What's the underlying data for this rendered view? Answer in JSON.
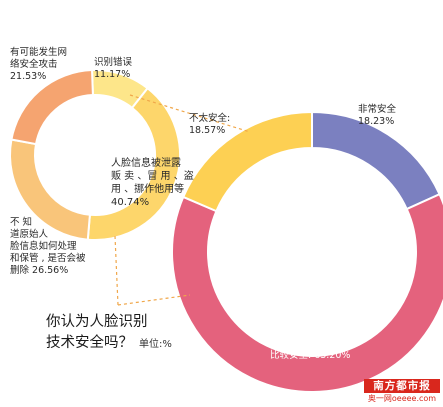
{
  "chart_data": [
    {
      "type": "pie",
      "variant": "donut",
      "title": "你认为人脸识别技术安全吗？",
      "unit": "单位:%",
      "categories": [
        "识别错误",
        "人脸信息被泄露贩卖、冒用、盗用、挪作他用等",
        "不知道原始人脸信息如何处理和保管，是否会被删除",
        "有可能发生网络安全攻击"
      ],
      "values": [
        11.17,
        40.74,
        26.56,
        21.53
      ],
      "labels": [
        {
          "lines": [
            "识别错误",
            "11.17%"
          ]
        },
        {
          "lines": [
            "人脸信息被泄露",
            "贩 卖 、冒 用 、盗",
            "用 、挪作他用等",
            "40.74%"
          ]
        },
        {
          "lines": [
            "不   知",
            "道原始人",
            "脸信息如何处理",
            "和保管 , 是否会被",
            "删除  26.56%"
          ]
        },
        {
          "lines": [
            "有可能发生网",
            "络安全攻击",
            "21.53%"
          ]
        }
      ],
      "colors": [
        "#fde68a",
        "#fdd66b",
        "#f9c57a",
        "#f5a470"
      ]
    },
    {
      "type": "pie",
      "variant": "donut",
      "categories": [
        "非常安全",
        "比较安全",
        "不太安全"
      ],
      "values": [
        18.23,
        63.2,
        18.57
      ],
      "labels": [
        {
          "lines": [
            "非常安全",
            "18.23%"
          ]
        },
        {
          "lines": [
            "比较安全: 63.20%"
          ]
        },
        {
          "lines": [
            "不太安全:",
            "18.57%"
          ]
        }
      ],
      "colors": [
        "#7b80c0",
        "#e4627d",
        "#fdd053"
      ]
    }
  ],
  "question": {
    "line1": "你认为人脸识别",
    "line2": "技术安全吗？",
    "unit": "单位:%"
  },
  "watermark": {
    "main": "南方都市报",
    "sub": "奥一网oeeee.com"
  }
}
